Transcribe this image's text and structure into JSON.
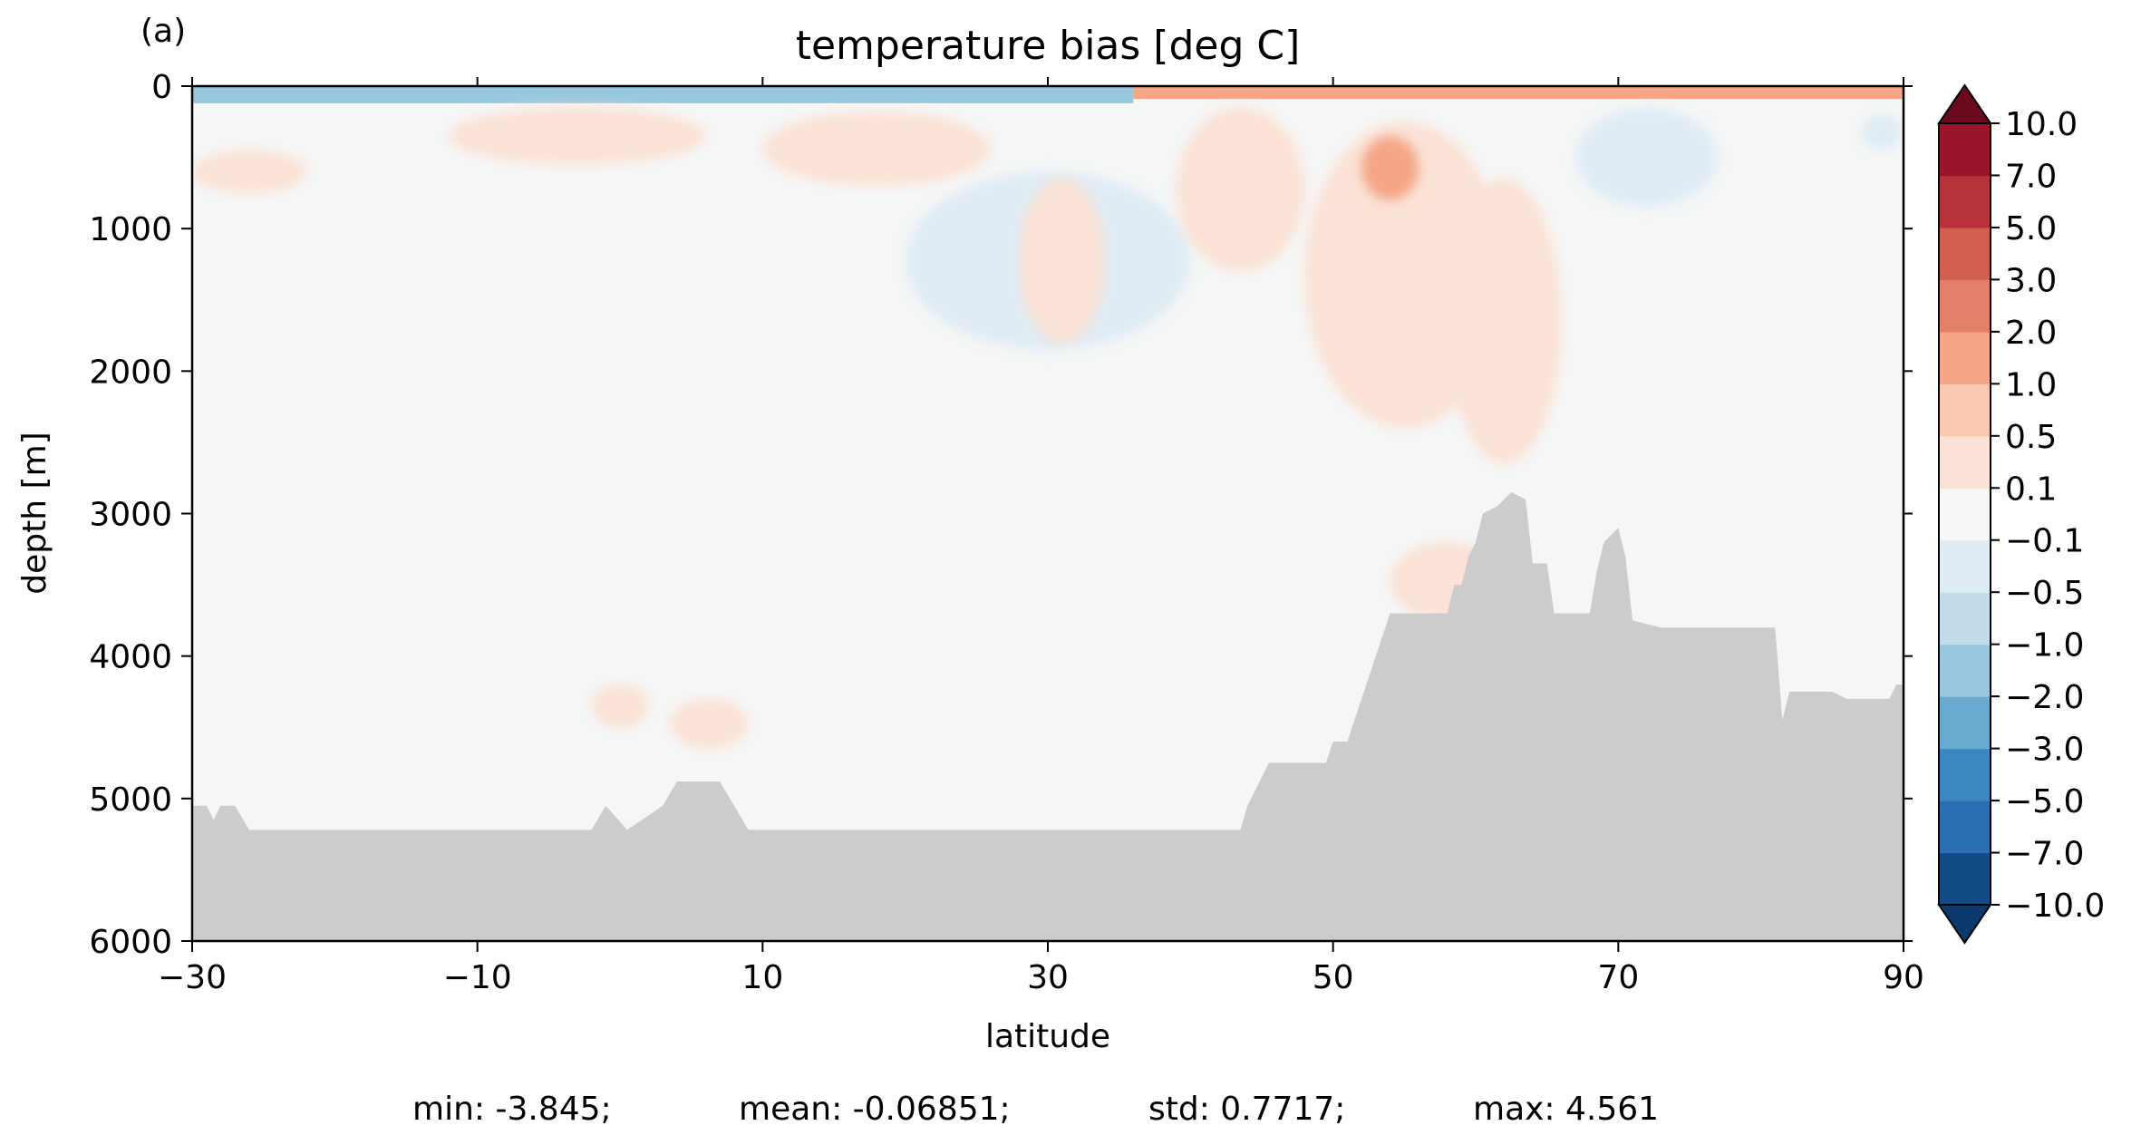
{
  "chart_data": {
    "type": "heatmap",
    "panel_label": "(a)",
    "title": "temperature bias [deg C]",
    "xlabel": "latitude",
    "ylabel": "depth [m]",
    "xlim": [
      -30,
      90
    ],
    "ylim": [
      6000,
      0
    ],
    "x_ticks": [
      -30,
      -10,
      10,
      30,
      50,
      70,
      90
    ],
    "x_tick_labels": [
      "−30",
      "−10",
      "10",
      "30",
      "50",
      "70",
      "90"
    ],
    "y_ticks": [
      0,
      1000,
      2000,
      3000,
      4000,
      5000,
      6000
    ],
    "y_tick_labels": [
      "0",
      "1000",
      "2000",
      "3000",
      "4000",
      "5000",
      "6000"
    ],
    "colorbar": {
      "levels": [
        -10.0,
        -7.0,
        -5.0,
        -3.0,
        -2.0,
        -1.0,
        -0.5,
        -0.1,
        0.1,
        0.5,
        1.0,
        2.0,
        3.0,
        5.0,
        7.0,
        10.0
      ],
      "tick_labels": [
        "−10.0",
        "−7.0",
        "−5.0",
        "−3.0",
        "−2.0",
        "−1.0",
        "−0.5",
        "−0.1",
        "0.1",
        "0.5",
        "1.0",
        "2.0",
        "3.0",
        "5.0",
        "7.0",
        "10.0"
      ],
      "colors": [
        "#0b3a6e",
        "#134b87",
        "#2a6fb2",
        "#3d87c0",
        "#6aa9d0",
        "#9ac7e0",
        "#c2dcec",
        "#e0ecf4",
        "#f5f6f6",
        "#fbe2d6",
        "#fac9b0",
        "#f4a686",
        "#e3806a",
        "#d15e4f",
        "#b8323a",
        "#9a1529",
        "#6b0a1f"
      ],
      "extend": "both"
    },
    "background_color": "#f5f6f6",
    "land_color": "#cccccc",
    "features": [
      {
        "kind": "band",
        "lat": [
          -30,
          36
        ],
        "depth": [
          0,
          120
        ],
        "value": -1.5
      },
      {
        "kind": "band",
        "lat": [
          36,
          90
        ],
        "depth": [
          0,
          90
        ],
        "value": 1.2
      },
      {
        "kind": "blob",
        "lat": [
          -30,
          -22
        ],
        "depth": [
          450,
          750
        ],
        "value": 0.3
      },
      {
        "kind": "blob",
        "lat": [
          -12,
          6
        ],
        "depth": [
          150,
          550
        ],
        "value": 0.3
      },
      {
        "kind": "blob",
        "lat": [
          10,
          26
        ],
        "depth": [
          180,
          700
        ],
        "value": 0.3
      },
      {
        "kind": "blob",
        "lat": [
          20,
          40
        ],
        "depth": [
          600,
          1850
        ],
        "value": -0.3
      },
      {
        "kind": "blob",
        "lat": [
          28,
          34
        ],
        "depth": [
          650,
          1800
        ],
        "value": 0.3
      },
      {
        "kind": "blob",
        "lat": [
          39,
          48
        ],
        "depth": [
          150,
          1300
        ],
        "value": 0.3
      },
      {
        "kind": "blob",
        "lat": [
          48,
          62
        ],
        "depth": [
          250,
          2400
        ],
        "value": 0.4
      },
      {
        "kind": "blob",
        "lat": [
          52,
          56
        ],
        "depth": [
          350,
          800
        ],
        "value": 1.2
      },
      {
        "kind": "blob",
        "lat": [
          58,
          66
        ],
        "depth": [
          650,
          2650
        ],
        "value": 0.3
      },
      {
        "kind": "blob",
        "lat": [
          67,
          77
        ],
        "depth": [
          150,
          850
        ],
        "value": -0.3
      },
      {
        "kind": "blob",
        "lat": [
          87,
          90
        ],
        "depth": [
          200,
          450
        ],
        "value": -0.3
      },
      {
        "kind": "blob",
        "lat": [
          54,
          62
        ],
        "depth": [
          3200,
          3750
        ],
        "value": 0.3
      },
      {
        "kind": "blob",
        "lat": [
          -2,
          2
        ],
        "depth": [
          4200,
          4500
        ],
        "value": 0.3
      },
      {
        "kind": "blob",
        "lat": [
          3.5,
          9
        ],
        "depth": [
          4300,
          4650
        ],
        "value": 0.3
      }
    ],
    "bathymetry": [
      [
        -30,
        5050
      ],
      [
        -29,
        5050
      ],
      [
        -28.5,
        5150
      ],
      [
        -28,
        5050
      ],
      [
        -27,
        5050
      ],
      [
        -26,
        5220
      ],
      [
        -2,
        5220
      ],
      [
        -1,
        5050
      ],
      [
        0.5,
        5220
      ],
      [
        3,
        5050
      ],
      [
        4,
        4880
      ],
      [
        7,
        4880
      ],
      [
        8,
        5050
      ],
      [
        9,
        5220
      ],
      [
        43.5,
        5220
      ],
      [
        44,
        5050
      ],
      [
        45.5,
        4750
      ],
      [
        49.5,
        4750
      ],
      [
        50,
        4600
      ],
      [
        51,
        4600
      ],
      [
        53,
        4000
      ],
      [
        54,
        3700
      ],
      [
        58,
        3700
      ],
      [
        58.5,
        3500
      ],
      [
        59,
        3500
      ],
      [
        59.5,
        3300
      ],
      [
        60,
        3200
      ],
      [
        60.5,
        3000
      ],
      [
        61.5,
        2950
      ],
      [
        62.5,
        2850
      ],
      [
        63.5,
        2900
      ],
      [
        64,
        3350
      ],
      [
        65,
        3350
      ],
      [
        65.5,
        3700
      ],
      [
        68,
        3700
      ],
      [
        68.5,
        3400
      ],
      [
        69,
        3200
      ],
      [
        70,
        3100
      ],
      [
        70.5,
        3300
      ],
      [
        71,
        3750
      ],
      [
        73,
        3800
      ],
      [
        81,
        3800
      ],
      [
        81.5,
        4450
      ],
      [
        82,
        4250
      ],
      [
        85,
        4250
      ],
      [
        86,
        4300
      ],
      [
        89,
        4300
      ],
      [
        89.5,
        4200
      ],
      [
        90,
        4200
      ]
    ],
    "statistics": {
      "min": "min: -3.845;",
      "mean": "mean: -0.06851;",
      "std": "std: 0.7717;",
      "max": "max: 4.561"
    }
  }
}
